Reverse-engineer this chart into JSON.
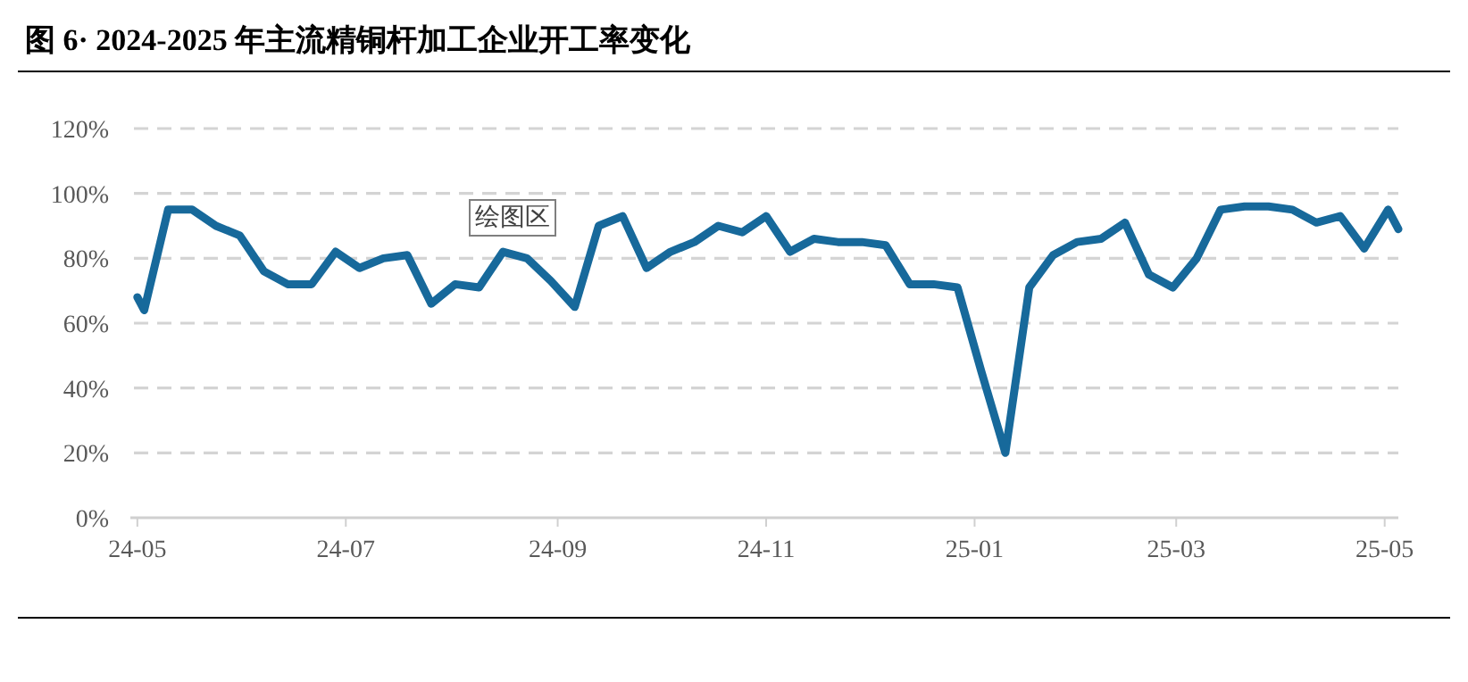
{
  "chart_data": {
    "type": "line",
    "title": "图 6· 2024-2025 年主流精铜杆加工企业开工率变化",
    "annotations": [
      "绘图区"
    ],
    "x": [
      "2024-05-01",
      "2024-05-03",
      "2024-05-10",
      "2024-05-17",
      "2024-05-24",
      "2024-05-31",
      "2024-06-07",
      "2024-06-14",
      "2024-06-21",
      "2024-06-28",
      "2024-07-05",
      "2024-07-12",
      "2024-07-19",
      "2024-07-26",
      "2024-08-02",
      "2024-08-09",
      "2024-08-16",
      "2024-08-23",
      "2024-08-30",
      "2024-09-06",
      "2024-09-13",
      "2024-09-20",
      "2024-09-27",
      "2024-10-04",
      "2024-10-11",
      "2024-10-18",
      "2024-10-25",
      "2024-11-01",
      "2024-11-08",
      "2024-11-15",
      "2024-11-22",
      "2024-11-29",
      "2024-12-06",
      "2024-12-13",
      "2024-12-20",
      "2024-12-27",
      "2025-01-03",
      "2025-01-10",
      "2025-01-17",
      "2025-01-24",
      "2025-01-31",
      "2025-02-07",
      "2025-02-14",
      "2025-02-21",
      "2025-02-28",
      "2025-03-07",
      "2025-03-14",
      "2025-03-21",
      "2025-03-28",
      "2025-04-04",
      "2025-04-11",
      "2025-04-18",
      "2025-04-25",
      "2025-05-02",
      "2025-05-05"
    ],
    "series": [
      {
        "color": "#17699b",
        "values": [
          68,
          64,
          95,
          95,
          90,
          87,
          76,
          72,
          72,
          82,
          77,
          80,
          81,
          66,
          72,
          71,
          82,
          80,
          73,
          65,
          90,
          93,
          77,
          82,
          85,
          90,
          88,
          93,
          82,
          86,
          85,
          85,
          84,
          72,
          72,
          71,
          45,
          20,
          71,
          81,
          85,
          86,
          91,
          75,
          71,
          80,
          95,
          96,
          96,
          95,
          91,
          93,
          83,
          95,
          89
        ]
      }
    ],
    "xlim": [
      "2024-04-30",
      "2025-05-05"
    ],
    "xticks": [
      {
        "value": "2024-05-01",
        "label": "24-05"
      },
      {
        "value": "2024-07-01",
        "label": "24-07"
      },
      {
        "value": "2024-09-01",
        "label": "24-09"
      },
      {
        "value": "2024-11-01",
        "label": "24-11"
      },
      {
        "value": "2025-01-01",
        "label": "25-01"
      },
      {
        "value": "2025-03-01",
        "label": "25-03"
      },
      {
        "value": "2025-05-01",
        "label": "25-05"
      }
    ],
    "ylim": [
      0,
      120
    ],
    "yticks": [
      {
        "value": 0,
        "label": "0%"
      },
      {
        "value": 20,
        "label": "20%"
      },
      {
        "value": 40,
        "label": "40%"
      },
      {
        "value": 60,
        "label": "60%"
      },
      {
        "value": 80,
        "label": "80%"
      },
      {
        "value": 100,
        "label": "100%"
      },
      {
        "value": 120,
        "label": "120%"
      }
    ],
    "grid": "y",
    "marker": "none",
    "line_style": "solid"
  }
}
